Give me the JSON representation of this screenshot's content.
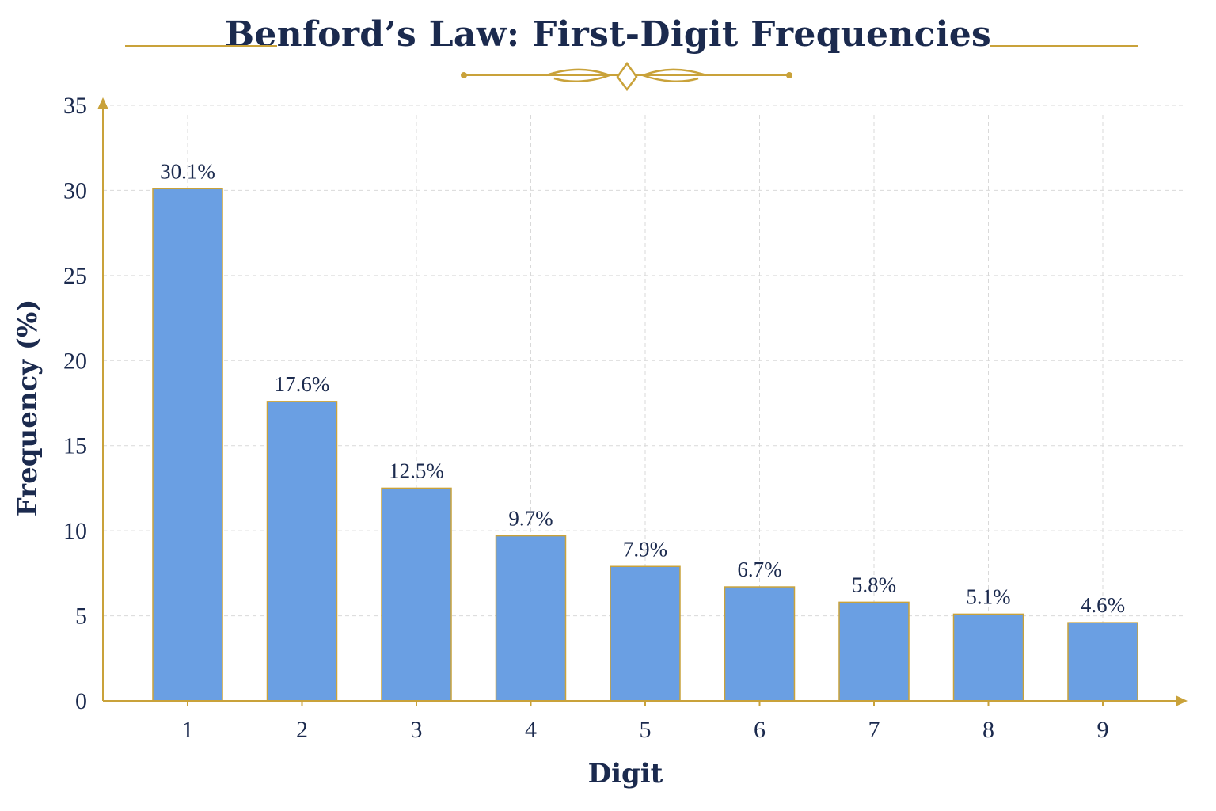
{
  "colors": {
    "title": "#1b2a4e",
    "gold": "#c9a23a",
    "bar": "#6a9fe3",
    "bar_stroke": "#c9a23a",
    "text": "#1b2a4e",
    "grid": "#d9d9d9"
  },
  "chart_data": {
    "type": "bar",
    "title": "Benford’s Law: First-Digit Frequencies",
    "xlabel": "Digit",
    "ylabel": "Frequency (%)",
    "categories": [
      "1",
      "2",
      "3",
      "4",
      "5",
      "6",
      "7",
      "8",
      "9"
    ],
    "values": [
      30.1,
      17.6,
      12.5,
      9.7,
      7.9,
      6.7,
      5.8,
      5.1,
      4.6
    ],
    "data_labels": [
      "30.1%",
      "17.6%",
      "12.5%",
      "9.7%",
      "7.9%",
      "6.7%",
      "5.8%",
      "5.1%",
      "4.6%"
    ],
    "ylim": [
      0,
      35
    ],
    "yticks": [
      0,
      5,
      10,
      15,
      20,
      25,
      30,
      35
    ],
    "grid": true,
    "legend": "none"
  }
}
